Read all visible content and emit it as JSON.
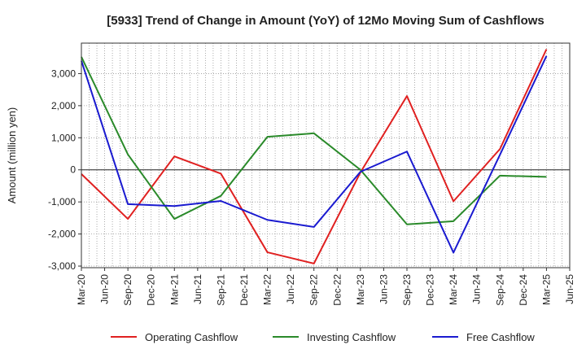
{
  "chart_data": {
    "type": "line",
    "title": "[5933]  Trend of Change in Amount (YoY) of 12Mo Moving Sum of Cashflows",
    "xlabel": "",
    "ylabel": "Amount (million yen)",
    "ylim": [
      -3050,
      3950
    ],
    "yticks": [
      -3000,
      -2000,
      -1000,
      0,
      1000,
      2000,
      3000
    ],
    "ytick_labels": [
      "-3,000",
      "-2,000",
      "-1,000",
      "0",
      "1,000",
      "2,000",
      "3,000"
    ],
    "categories": [
      "Mar-20",
      "Jun-20",
      "Sep-20",
      "Dec-20",
      "Mar-21",
      "Jun-21",
      "Sep-21",
      "Dec-21",
      "Mar-22",
      "Jun-22",
      "Sep-22",
      "Dec-22",
      "Mar-23",
      "Jun-23",
      "Sep-23",
      "Dec-23",
      "Mar-24",
      "Jun-24",
      "Sep-24",
      "Dec-24",
      "Mar-25",
      "Jun-25"
    ],
    "grid": true,
    "legend_position": "bottom",
    "series": [
      {
        "name": "Operating Cashflow",
        "color": "#e02020",
        "points": [
          {
            "x": "Mar-20",
            "y": -130
          },
          {
            "x": "Sep-20",
            "y": -1530
          },
          {
            "x": "Mar-21",
            "y": 420
          },
          {
            "x": "Sep-21",
            "y": -120
          },
          {
            "x": "Mar-22",
            "y": -2570
          },
          {
            "x": "Sep-22",
            "y": -2920
          },
          {
            "x": "Mar-23",
            "y": -80
          },
          {
            "x": "Sep-23",
            "y": 2300
          },
          {
            "x": "Mar-24",
            "y": -980
          },
          {
            "x": "Sep-24",
            "y": 650
          },
          {
            "x": "Mar-25",
            "y": 3760
          }
        ]
      },
      {
        "name": "Investing Cashflow",
        "color": "#2a8a2a",
        "points": [
          {
            "x": "Mar-20",
            "y": 3520
          },
          {
            "x": "Sep-20",
            "y": 480
          },
          {
            "x": "Mar-21",
            "y": -1530
          },
          {
            "x": "Sep-21",
            "y": -810
          },
          {
            "x": "Mar-22",
            "y": 1030
          },
          {
            "x": "Sep-22",
            "y": 1140
          },
          {
            "x": "Mar-23",
            "y": 0
          },
          {
            "x": "Sep-23",
            "y": -1700
          },
          {
            "x": "Mar-24",
            "y": -1600
          },
          {
            "x": "Sep-24",
            "y": -180
          },
          {
            "x": "Mar-25",
            "y": -220
          }
        ]
      },
      {
        "name": "Free Cashflow",
        "color": "#1a1ad0",
        "points": [
          {
            "x": "Mar-20",
            "y": 3400
          },
          {
            "x": "Sep-20",
            "y": -1070
          },
          {
            "x": "Mar-21",
            "y": -1130
          },
          {
            "x": "Sep-21",
            "y": -970
          },
          {
            "x": "Mar-22",
            "y": -1560
          },
          {
            "x": "Sep-22",
            "y": -1780
          },
          {
            "x": "Mar-23",
            "y": -60
          },
          {
            "x": "Sep-23",
            "y": 570
          },
          {
            "x": "Mar-24",
            "y": -2580
          },
          {
            "x": "Sep-24",
            "y": 470
          },
          {
            "x": "Mar-25",
            "y": 3550
          }
        ]
      }
    ]
  }
}
